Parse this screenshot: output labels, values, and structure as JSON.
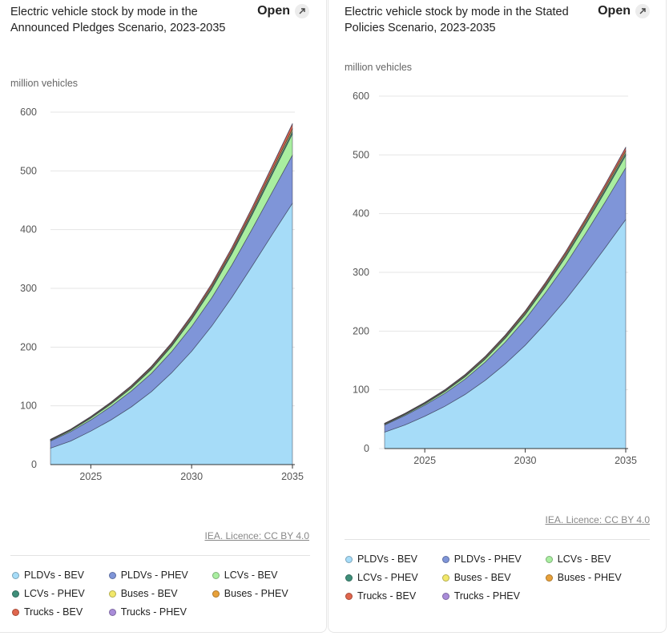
{
  "open_label": "Open",
  "open_icon": "external-link-icon",
  "colors": {
    "PLDVs - BEV": "#a6dcf8",
    "PLDVs - PHEV": "#7f95d8",
    "LCVs - BEV": "#a9eea0",
    "LCVs - PHEV": "#3f8f7a",
    "Buses - BEV": "#f2e86a",
    "Buses - PHEV": "#e8a13a",
    "Trucks - BEV": "#e0664d",
    "Trucks - PHEV": "#a98cd9"
  },
  "chart_data": [
    {
      "type": "area",
      "stacked": true,
      "title": "Electric vehicle stock by mode in the Announced Pledges Scenario, 2023-2035",
      "ylabel": "million vehicles",
      "xlabel": "",
      "ylim": [
        0,
        600
      ],
      "yticks": [
        0,
        100,
        200,
        300,
        400,
        500,
        600
      ],
      "xticks": [
        2025,
        2030,
        2035
      ],
      "x": [
        2023,
        2024,
        2025,
        2026,
        2027,
        2028,
        2029,
        2030,
        2031,
        2032,
        2033,
        2034,
        2035
      ],
      "series": [
        {
          "name": "PLDVs - BEV",
          "values": [
            28,
            40,
            57,
            76,
            98,
            124,
            156,
            193,
            236,
            285,
            338,
            392,
            445
          ]
        },
        {
          "name": "PLDVs - PHEV",
          "values": [
            12,
            16,
            19,
            23,
            27,
            31,
            36,
            42,
            48,
            55,
            63,
            72,
            82
          ]
        },
        {
          "name": "LCVs - BEV",
          "values": [
            1,
            2,
            3,
            4,
            5,
            7,
            9,
            12,
            15,
            19,
            24,
            30,
            36
          ]
        },
        {
          "name": "LCVs - PHEV",
          "values": [
            0.5,
            0.6,
            0.8,
            1,
            1.2,
            1.5,
            1.8,
            2.2,
            2.6,
            3,
            3.5,
            4,
            4.5
          ]
        },
        {
          "name": "Buses - BEV",
          "values": [
            1,
            1,
            1.2,
            1.4,
            1.6,
            1.8,
            2,
            2.3,
            2.6,
            2.9,
            3.2,
            3.6,
            4
          ]
        },
        {
          "name": "Buses - PHEV",
          "values": [
            0.1,
            0.1,
            0.1,
            0.1,
            0.2,
            0.2,
            0.2,
            0.2,
            0.3,
            0.3,
            0.3,
            0.3,
            0.4
          ]
        },
        {
          "name": "Trucks - BEV",
          "values": [
            0.3,
            0.4,
            0.6,
            0.8,
            1.1,
            1.5,
            2,
            2.6,
            3.4,
            4.3,
            5.3,
            6.5,
            8
          ]
        },
        {
          "name": "Trucks - PHEV",
          "values": [
            0.1,
            0.1,
            0.1,
            0.1,
            0.2,
            0.2,
            0.3,
            0.3,
            0.4,
            0.5,
            0.6,
            0.7,
            0.8
          ]
        }
      ],
      "legend": [
        "PLDVs - BEV",
        "PLDVs - PHEV",
        "LCVs - BEV",
        "LCVs - PHEV",
        "Buses - BEV",
        "Buses - PHEV",
        "Trucks - BEV",
        "Trucks - PHEV"
      ],
      "credit": "IEA. Licence: CC BY 4.0"
    },
    {
      "type": "area",
      "stacked": true,
      "title": "Electric vehicle stock by mode in the Stated Policies Scenario, 2023-2035",
      "ylabel": "million vehicles",
      "xlabel": "",
      "ylim": [
        0,
        600
      ],
      "yticks": [
        0,
        100,
        200,
        300,
        400,
        500,
        600
      ],
      "xticks": [
        2025,
        2030,
        2035
      ],
      "x": [
        2023,
        2024,
        2025,
        2026,
        2027,
        2028,
        2029,
        2030,
        2031,
        2032,
        2033,
        2034,
        2035
      ],
      "series": [
        {
          "name": "PLDVs - BEV",
          "values": [
            28,
            40,
            55,
            72,
            92,
            116,
            144,
            176,
            213,
            253,
            297,
            343,
            390
          ]
        },
        {
          "name": "PLDVs - PHEV",
          "values": [
            12,
            16,
            19,
            22,
            26,
            31,
            37,
            44,
            52,
            60,
            69,
            78,
            88
          ]
        },
        {
          "name": "LCVs - BEV",
          "values": [
            1,
            1.5,
            2,
            3,
            4,
            5,
            6.5,
            8,
            10,
            12.5,
            15,
            18,
            21
          ]
        },
        {
          "name": "LCVs - PHEV",
          "values": [
            0.5,
            0.6,
            0.8,
            1,
            1.2,
            1.4,
            1.7,
            2,
            2.3,
            2.7,
            3.1,
            3.5,
            4
          ]
        },
        {
          "name": "Buses - BEV",
          "values": [
            1,
            1,
            1.2,
            1.3,
            1.5,
            1.7,
            1.9,
            2.1,
            2.3,
            2.6,
            2.9,
            3.2,
            3.5
          ]
        },
        {
          "name": "Buses - PHEV",
          "values": [
            0.1,
            0.1,
            0.1,
            0.1,
            0.2,
            0.2,
            0.2,
            0.2,
            0.2,
            0.3,
            0.3,
            0.3,
            0.3
          ]
        },
        {
          "name": "Trucks - BEV",
          "values": [
            0.3,
            0.4,
            0.5,
            0.7,
            0.9,
            1.2,
            1.6,
            2,
            2.6,
            3.2,
            4,
            4.8,
            5.8
          ]
        },
        {
          "name": "Trucks - PHEV",
          "values": [
            0.1,
            0.1,
            0.1,
            0.1,
            0.1,
            0.2,
            0.2,
            0.2,
            0.3,
            0.3,
            0.4,
            0.5,
            0.6
          ]
        }
      ],
      "legend": [
        "PLDVs - BEV",
        "PLDVs - PHEV",
        "LCVs - BEV",
        "LCVs - PHEV",
        "Buses - BEV",
        "Buses - PHEV",
        "Trucks - BEV",
        "Trucks - PHEV"
      ],
      "credit": "IEA. Licence: CC BY 4.0"
    }
  ]
}
